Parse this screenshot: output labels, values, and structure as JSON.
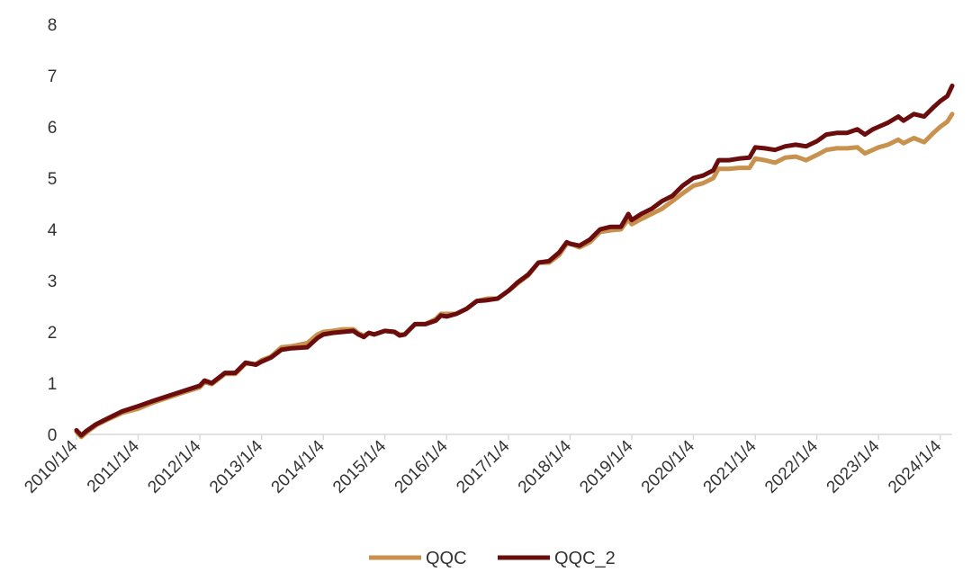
{
  "chart_data": {
    "type": "line",
    "title": "",
    "xlabel": "",
    "ylabel": "",
    "ylim": [
      0,
      8
    ],
    "yticks": [
      0,
      1,
      2,
      3,
      4,
      5,
      6,
      7,
      8
    ],
    "xlim": [
      "2010-01-04",
      "2024-03-15"
    ],
    "xticks": [
      "2010/1/4",
      "2011/1/4",
      "2012/1/4",
      "2013/1/4",
      "2014/1/4",
      "2015/1/4",
      "2016/1/4",
      "2017/1/4",
      "2018/1/4",
      "2019/1/4",
      "2020/1/4",
      "2021/1/4",
      "2022/1/4",
      "2023/1/4",
      "2024/1/4"
    ],
    "grid": false,
    "legend_position": "bottom-center",
    "series": [
      {
        "name": "QQC",
        "color": "#c8924e",
        "points": [
          [
            "2010-01-04",
            0.05
          ],
          [
            "2010-02-01",
            -0.05
          ],
          [
            "2010-03-01",
            0.03
          ],
          [
            "2010-05-01",
            0.18
          ],
          [
            "2010-07-01",
            0.28
          ],
          [
            "2010-10-01",
            0.42
          ],
          [
            "2011-01-04",
            0.5
          ],
          [
            "2011-04-01",
            0.62
          ],
          [
            "2011-07-01",
            0.72
          ],
          [
            "2011-10-01",
            0.82
          ],
          [
            "2012-01-04",
            0.92
          ],
          [
            "2012-02-01",
            1.02
          ],
          [
            "2012-03-15",
            0.98
          ],
          [
            "2012-06-01",
            1.18
          ],
          [
            "2012-08-01",
            1.18
          ],
          [
            "2012-10-01",
            1.38
          ],
          [
            "2012-12-01",
            1.37
          ],
          [
            "2013-01-04",
            1.45
          ],
          [
            "2013-03-01",
            1.52
          ],
          [
            "2013-05-01",
            1.7
          ],
          [
            "2013-07-01",
            1.72
          ],
          [
            "2013-10-01",
            1.78
          ],
          [
            "2013-12-01",
            1.95
          ],
          [
            "2014-01-04",
            2.0
          ],
          [
            "2014-03-01",
            2.02
          ],
          [
            "2014-05-01",
            2.05
          ],
          [
            "2014-07-01",
            2.05
          ],
          [
            "2014-08-01",
            1.97
          ],
          [
            "2014-09-01",
            1.93
          ],
          [
            "2014-10-01",
            1.98
          ],
          [
            "2014-11-01",
            1.95
          ],
          [
            "2015-01-04",
            2.02
          ],
          [
            "2015-03-01",
            2.0
          ],
          [
            "2015-04-01",
            1.95
          ],
          [
            "2015-05-01",
            1.95
          ],
          [
            "2015-07-01",
            2.15
          ],
          [
            "2015-09-01",
            2.15
          ],
          [
            "2015-11-01",
            2.25
          ],
          [
            "2015-12-01",
            2.35
          ],
          [
            "2016-01-04",
            2.35
          ],
          [
            "2016-03-01",
            2.35
          ],
          [
            "2016-05-01",
            2.45
          ],
          [
            "2016-07-01",
            2.6
          ],
          [
            "2016-09-01",
            2.65
          ],
          [
            "2016-11-01",
            2.65
          ],
          [
            "2017-01-04",
            2.8
          ],
          [
            "2017-03-01",
            2.95
          ],
          [
            "2017-05-01",
            3.1
          ],
          [
            "2017-07-01",
            3.35
          ],
          [
            "2017-09-01",
            3.35
          ],
          [
            "2017-11-01",
            3.5
          ],
          [
            "2017-12-15",
            3.72
          ],
          [
            "2018-01-04",
            3.72
          ],
          [
            "2018-03-01",
            3.65
          ],
          [
            "2018-05-01",
            3.75
          ],
          [
            "2018-07-01",
            3.95
          ],
          [
            "2018-09-01",
            3.98
          ],
          [
            "2018-11-01",
            4.0
          ],
          [
            "2018-12-15",
            4.2
          ],
          [
            "2019-01-04",
            4.1
          ],
          [
            "2019-03-01",
            4.2
          ],
          [
            "2019-05-01",
            4.3
          ],
          [
            "2019-07-01",
            4.4
          ],
          [
            "2019-09-01",
            4.55
          ],
          [
            "2019-11-01",
            4.7
          ],
          [
            "2020-01-04",
            4.85
          ],
          [
            "2020-03-01",
            4.9
          ],
          [
            "2020-05-01",
            5.0
          ],
          [
            "2020-06-01",
            5.18
          ],
          [
            "2020-08-01",
            5.18
          ],
          [
            "2020-10-01",
            5.2
          ],
          [
            "2020-12-01",
            5.2
          ],
          [
            "2021-01-04",
            5.38
          ],
          [
            "2021-03-01",
            5.35
          ],
          [
            "2021-05-01",
            5.3
          ],
          [
            "2021-07-01",
            5.4
          ],
          [
            "2021-09-01",
            5.42
          ],
          [
            "2021-11-01",
            5.35
          ],
          [
            "2022-01-04",
            5.45
          ],
          [
            "2022-03-01",
            5.55
          ],
          [
            "2022-05-01",
            5.58
          ],
          [
            "2022-07-01",
            5.58
          ],
          [
            "2022-09-01",
            5.6
          ],
          [
            "2022-10-15",
            5.48
          ],
          [
            "2022-12-01",
            5.55
          ],
          [
            "2023-01-04",
            5.6
          ],
          [
            "2023-03-01",
            5.65
          ],
          [
            "2023-05-01",
            5.75
          ],
          [
            "2023-06-01",
            5.68
          ],
          [
            "2023-08-01",
            5.78
          ],
          [
            "2023-10-01",
            5.7
          ],
          [
            "2023-12-01",
            5.9
          ],
          [
            "2024-01-04",
            6.0
          ],
          [
            "2024-02-15",
            6.1
          ],
          [
            "2024-03-15",
            6.25
          ]
        ]
      },
      {
        "name": "QQC_2",
        "color": "#6b0d0d",
        "points": [
          [
            "2010-01-04",
            0.08
          ],
          [
            "2010-02-01",
            -0.02
          ],
          [
            "2010-03-01",
            0.06
          ],
          [
            "2010-05-01",
            0.2
          ],
          [
            "2010-07-01",
            0.3
          ],
          [
            "2010-10-01",
            0.45
          ],
          [
            "2011-01-04",
            0.55
          ],
          [
            "2011-04-01",
            0.65
          ],
          [
            "2011-07-01",
            0.75
          ],
          [
            "2011-10-01",
            0.85
          ],
          [
            "2012-01-04",
            0.95
          ],
          [
            "2012-02-01",
            1.05
          ],
          [
            "2012-03-15",
            1.0
          ],
          [
            "2012-06-01",
            1.2
          ],
          [
            "2012-08-01",
            1.2
          ],
          [
            "2012-10-01",
            1.4
          ],
          [
            "2012-12-01",
            1.36
          ],
          [
            "2013-01-04",
            1.42
          ],
          [
            "2013-03-01",
            1.5
          ],
          [
            "2013-05-01",
            1.65
          ],
          [
            "2013-07-01",
            1.68
          ],
          [
            "2013-10-01",
            1.7
          ],
          [
            "2013-12-01",
            1.88
          ],
          [
            "2014-01-04",
            1.95
          ],
          [
            "2014-03-01",
            1.98
          ],
          [
            "2014-05-01",
            2.0
          ],
          [
            "2014-07-01",
            2.02
          ],
          [
            "2014-08-01",
            1.95
          ],
          [
            "2014-09-01",
            1.9
          ],
          [
            "2014-10-01",
            1.98
          ],
          [
            "2014-11-01",
            1.95
          ],
          [
            "2015-01-04",
            2.02
          ],
          [
            "2015-03-01",
            2.0
          ],
          [
            "2015-04-01",
            1.93
          ],
          [
            "2015-05-01",
            1.95
          ],
          [
            "2015-07-01",
            2.15
          ],
          [
            "2015-09-01",
            2.15
          ],
          [
            "2015-11-01",
            2.22
          ],
          [
            "2015-12-01",
            2.32
          ],
          [
            "2016-01-04",
            2.3
          ],
          [
            "2016-03-01",
            2.35
          ],
          [
            "2016-05-01",
            2.45
          ],
          [
            "2016-07-01",
            2.6
          ],
          [
            "2016-09-01",
            2.62
          ],
          [
            "2016-11-01",
            2.65
          ],
          [
            "2017-01-04",
            2.8
          ],
          [
            "2017-03-01",
            2.97
          ],
          [
            "2017-05-01",
            3.12
          ],
          [
            "2017-07-01",
            3.35
          ],
          [
            "2017-09-01",
            3.38
          ],
          [
            "2017-11-01",
            3.55
          ],
          [
            "2017-12-15",
            3.75
          ],
          [
            "2018-01-04",
            3.72
          ],
          [
            "2018-03-01",
            3.68
          ],
          [
            "2018-05-01",
            3.8
          ],
          [
            "2018-07-01",
            4.0
          ],
          [
            "2018-09-01",
            4.05
          ],
          [
            "2018-11-01",
            4.05
          ],
          [
            "2018-12-15",
            4.3
          ],
          [
            "2019-01-04",
            4.18
          ],
          [
            "2019-03-01",
            4.3
          ],
          [
            "2019-05-01",
            4.4
          ],
          [
            "2019-07-01",
            4.55
          ],
          [
            "2019-09-01",
            4.65
          ],
          [
            "2019-11-01",
            4.85
          ],
          [
            "2020-01-04",
            5.0
          ],
          [
            "2020-03-01",
            5.05
          ],
          [
            "2020-05-01",
            5.15
          ],
          [
            "2020-06-01",
            5.35
          ],
          [
            "2020-08-01",
            5.35
          ],
          [
            "2020-10-01",
            5.38
          ],
          [
            "2020-12-01",
            5.4
          ],
          [
            "2021-01-04",
            5.6
          ],
          [
            "2021-03-01",
            5.58
          ],
          [
            "2021-05-01",
            5.55
          ],
          [
            "2021-07-01",
            5.62
          ],
          [
            "2021-09-01",
            5.65
          ],
          [
            "2021-11-01",
            5.62
          ],
          [
            "2022-01-04",
            5.72
          ],
          [
            "2022-03-01",
            5.85
          ],
          [
            "2022-05-01",
            5.88
          ],
          [
            "2022-07-01",
            5.88
          ],
          [
            "2022-09-01",
            5.95
          ],
          [
            "2022-10-15",
            5.85
          ],
          [
            "2022-12-01",
            5.95
          ],
          [
            "2023-01-04",
            6.0
          ],
          [
            "2023-03-01",
            6.08
          ],
          [
            "2023-05-01",
            6.2
          ],
          [
            "2023-06-01",
            6.12
          ],
          [
            "2023-08-01",
            6.25
          ],
          [
            "2023-10-01",
            6.2
          ],
          [
            "2023-12-01",
            6.4
          ],
          [
            "2024-01-04",
            6.5
          ],
          [
            "2024-02-15",
            6.6
          ],
          [
            "2024-03-15",
            6.8
          ]
        ]
      }
    ]
  }
}
